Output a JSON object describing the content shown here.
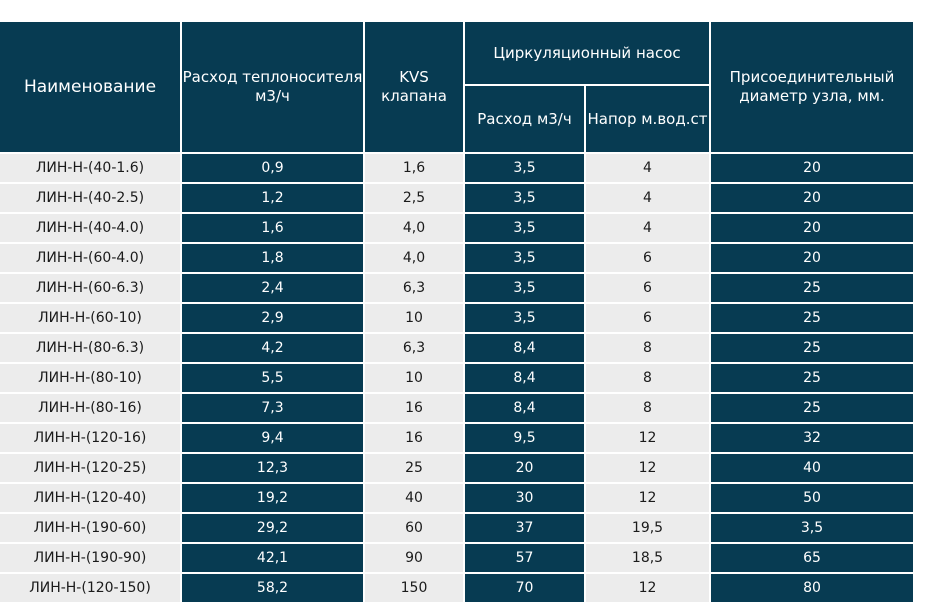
{
  "header": {
    "name": "Наименование",
    "flow": "Расход теплоносителя м3/ч",
    "kvs": "KVS клапана",
    "pump": "Циркуляционный насос",
    "pump_flow": "Расход м3/ч",
    "pump_head": "Напор м.вод.ст",
    "diameter": "Присоединительный диаметр узла, мм."
  },
  "rows": [
    {
      "name": "ЛИН-Н-(40-1.6)",
      "flow": "0,9",
      "kvs": "1,6",
      "pump_flow": "3,5",
      "pump_head": "4",
      "diameter": "20"
    },
    {
      "name": "ЛИН-Н-(40-2.5)",
      "flow": "1,2",
      "kvs": "2,5",
      "pump_flow": "3,5",
      "pump_head": "4",
      "diameter": "20"
    },
    {
      "name": "ЛИН-Н-(40-4.0)",
      "flow": "1,6",
      "kvs": "4,0",
      "pump_flow": "3,5",
      "pump_head": "4",
      "diameter": "20"
    },
    {
      "name": "ЛИН-Н-(60-4.0)",
      "flow": "1,8",
      "kvs": "4,0",
      "pump_flow": "3,5",
      "pump_head": "6",
      "diameter": "20"
    },
    {
      "name": "ЛИН-Н-(60-6.3)",
      "flow": "2,4",
      "kvs": "6,3",
      "pump_flow": "3,5",
      "pump_head": "6",
      "diameter": "25"
    },
    {
      "name": "ЛИН-Н-(60-10)",
      "flow": "2,9",
      "kvs": "10",
      "pump_flow": "3,5",
      "pump_head": "6",
      "diameter": "25"
    },
    {
      "name": "ЛИН-Н-(80-6.3)",
      "flow": "4,2",
      "kvs": "6,3",
      "pump_flow": "8,4",
      "pump_head": "8",
      "diameter": "25"
    },
    {
      "name": "ЛИН-Н-(80-10)",
      "flow": "5,5",
      "kvs": "10",
      "pump_flow": "8,4",
      "pump_head": "8",
      "diameter": "25"
    },
    {
      "name": "ЛИН-Н-(80-16)",
      "flow": "7,3",
      "kvs": "16",
      "pump_flow": "8,4",
      "pump_head": "8",
      "diameter": "25"
    },
    {
      "name": "ЛИН-Н-(120-16)",
      "flow": "9,4",
      "kvs": "16",
      "pump_flow": "9,5",
      "pump_head": "12",
      "diameter": "32"
    },
    {
      "name": "ЛИН-Н-(120-25)",
      "flow": "12,3",
      "kvs": "25",
      "pump_flow": "20",
      "pump_head": "12",
      "diameter": "40"
    },
    {
      "name": "ЛИН-Н-(120-40)",
      "flow": "19,2",
      "kvs": "40",
      "pump_flow": "30",
      "pump_head": "12",
      "diameter": "50"
    },
    {
      "name": "ЛИН-Н-(190-60)",
      "flow": "29,2",
      "kvs": "60",
      "pump_flow": "37",
      "pump_head": "19,5",
      "diameter": "3,5"
    },
    {
      "name": "ЛИН-Н-(190-90)",
      "flow": "42,1",
      "kvs": "90",
      "pump_flow": "57",
      "pump_head": "18,5",
      "diameter": "65"
    },
    {
      "name": "ЛИН-Н-(120-150)",
      "flow": "58,2",
      "kvs": "150",
      "pump_flow": "70",
      "pump_head": "12",
      "diameter": "80"
    }
  ],
  "colors": {
    "header_bg": "#073b52",
    "dark_cell": "#073b52",
    "light_cell": "#ececec"
  }
}
